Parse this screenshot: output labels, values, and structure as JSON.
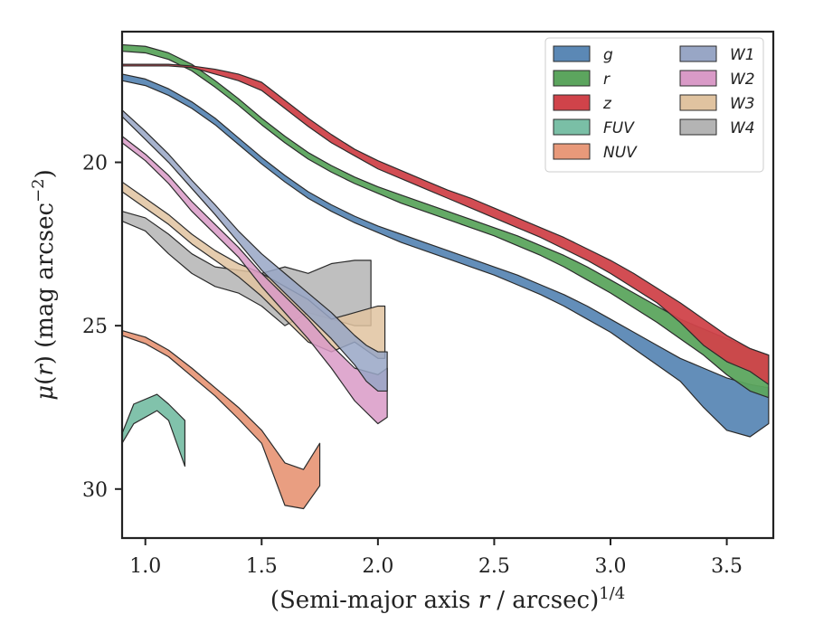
{
  "chart_data": {
    "type": "area",
    "xlabel": "(Semi-major axis r / arcsec)^1/4",
    "ylabel": "μ(r) (mag arcsec^−2)",
    "xlim": [
      0.9,
      3.7
    ],
    "ylim": [
      31.5,
      16.0
    ],
    "y_inverted": true,
    "x_ticks": [
      "1.0",
      "1.5",
      "2.0",
      "2.5",
      "3.0",
      "3.5"
    ],
    "y_ticks": [
      "20",
      "25",
      "30"
    ],
    "grid": false,
    "legend_position": "top-right",
    "legend_columns": 2,
    "series": [
      {
        "name": "g",
        "color": "#5b88b5",
        "points": [
          [
            0.9,
            17.3,
            17.5
          ],
          [
            1.0,
            17.45,
            17.65
          ],
          [
            1.1,
            17.75,
            17.95
          ],
          [
            1.2,
            18.15,
            18.35
          ],
          [
            1.3,
            18.65,
            18.85
          ],
          [
            1.4,
            19.25,
            19.45
          ],
          [
            1.5,
            19.85,
            20.05
          ],
          [
            1.6,
            20.4,
            20.6
          ],
          [
            1.7,
            20.9,
            21.1
          ],
          [
            1.8,
            21.3,
            21.5
          ],
          [
            1.9,
            21.65,
            21.85
          ],
          [
            2.0,
            21.95,
            22.15
          ],
          [
            2.1,
            22.2,
            22.45
          ],
          [
            2.2,
            22.45,
            22.7
          ],
          [
            2.3,
            22.7,
            22.95
          ],
          [
            2.4,
            22.95,
            23.2
          ],
          [
            2.5,
            23.2,
            23.45
          ],
          [
            2.6,
            23.45,
            23.75
          ],
          [
            2.7,
            23.75,
            24.05
          ],
          [
            2.8,
            24.05,
            24.4
          ],
          [
            2.9,
            24.4,
            24.8
          ],
          [
            3.0,
            24.8,
            25.2
          ],
          [
            3.1,
            25.2,
            25.7
          ],
          [
            3.2,
            25.6,
            26.2
          ],
          [
            3.3,
            26.0,
            26.7
          ],
          [
            3.4,
            26.3,
            27.5
          ],
          [
            3.5,
            26.6,
            28.2
          ],
          [
            3.6,
            26.8,
            28.4
          ],
          [
            3.68,
            26.9,
            28.0
          ]
        ]
      },
      {
        "name": "r",
        "color": "#5ca55e",
        "points": [
          [
            0.9,
            16.4,
            16.6
          ],
          [
            1.0,
            16.45,
            16.65
          ],
          [
            1.1,
            16.65,
            16.85
          ],
          [
            1.2,
            17.0,
            17.2
          ],
          [
            1.3,
            17.5,
            17.7
          ],
          [
            1.4,
            18.05,
            18.25
          ],
          [
            1.5,
            18.65,
            18.85
          ],
          [
            1.6,
            19.2,
            19.4
          ],
          [
            1.7,
            19.7,
            19.9
          ],
          [
            1.8,
            20.1,
            20.3
          ],
          [
            1.9,
            20.45,
            20.65
          ],
          [
            2.0,
            20.75,
            20.95
          ],
          [
            2.1,
            21.0,
            21.25
          ],
          [
            2.2,
            21.25,
            21.5
          ],
          [
            2.3,
            21.5,
            21.75
          ],
          [
            2.4,
            21.75,
            22.0
          ],
          [
            2.5,
            22.0,
            22.25
          ],
          [
            2.6,
            22.25,
            22.55
          ],
          [
            2.7,
            22.55,
            22.85
          ],
          [
            2.8,
            22.85,
            23.2
          ],
          [
            2.9,
            23.2,
            23.6
          ],
          [
            3.0,
            23.6,
            24.0
          ],
          [
            3.1,
            24.0,
            24.45
          ],
          [
            3.2,
            24.4,
            24.9
          ],
          [
            3.3,
            24.8,
            25.4
          ],
          [
            3.4,
            25.1,
            25.9
          ],
          [
            3.5,
            25.4,
            26.5
          ],
          [
            3.6,
            25.7,
            27.0
          ],
          [
            3.68,
            25.9,
            27.2
          ]
        ]
      },
      {
        "name": "z",
        "color": "#d0434a",
        "points": [
          [
            0.9,
            17.0,
            17.05
          ],
          [
            1.0,
            17.0,
            17.05
          ],
          [
            1.1,
            17.0,
            17.05
          ],
          [
            1.2,
            17.05,
            17.1
          ],
          [
            1.3,
            17.15,
            17.3
          ],
          [
            1.4,
            17.3,
            17.5
          ],
          [
            1.5,
            17.55,
            17.8
          ],
          [
            1.6,
            18.1,
            18.35
          ],
          [
            1.7,
            18.65,
            18.9
          ],
          [
            1.8,
            19.15,
            19.4
          ],
          [
            1.9,
            19.6,
            19.8
          ],
          [
            2.0,
            19.95,
            20.2
          ],
          [
            2.1,
            20.25,
            20.5
          ],
          [
            2.2,
            20.55,
            20.8
          ],
          [
            2.3,
            20.85,
            21.1
          ],
          [
            2.4,
            21.1,
            21.4
          ],
          [
            2.5,
            21.4,
            21.7
          ],
          [
            2.6,
            21.7,
            22.0
          ],
          [
            2.7,
            22.0,
            22.3
          ],
          [
            2.8,
            22.3,
            22.65
          ],
          [
            2.9,
            22.65,
            23.0
          ],
          [
            3.0,
            23.0,
            23.4
          ],
          [
            3.1,
            23.4,
            23.85
          ],
          [
            3.2,
            23.85,
            24.3
          ],
          [
            3.3,
            24.3,
            24.9
          ],
          [
            3.4,
            24.8,
            25.6
          ],
          [
            3.5,
            25.3,
            26.1
          ],
          [
            3.6,
            25.7,
            26.4
          ],
          [
            3.68,
            25.9,
            26.8
          ]
        ]
      },
      {
        "name": "FUV",
        "color": "#7abfa6",
        "points": [
          [
            0.9,
            28.3,
            28.6
          ],
          [
            0.95,
            27.4,
            28.0
          ],
          [
            1.05,
            27.1,
            27.6
          ],
          [
            1.1,
            27.4,
            27.9
          ],
          [
            1.17,
            27.9,
            29.3
          ]
        ]
      },
      {
        "name": "NUV",
        "color": "#e8997a",
        "points": [
          [
            0.9,
            25.15,
            25.3
          ],
          [
            1.0,
            25.35,
            25.55
          ],
          [
            1.1,
            25.75,
            25.95
          ],
          [
            1.2,
            26.3,
            26.55
          ],
          [
            1.3,
            26.9,
            27.15
          ],
          [
            1.4,
            27.5,
            27.85
          ],
          [
            1.5,
            28.2,
            28.6
          ],
          [
            1.6,
            29.2,
            30.5
          ],
          [
            1.68,
            29.4,
            30.6
          ],
          [
            1.75,
            28.6,
            29.9
          ]
        ]
      },
      {
        "name": "W1",
        "color": "#98a6c5",
        "points": [
          [
            0.9,
            18.4,
            18.6
          ],
          [
            1.0,
            19.05,
            19.3
          ],
          [
            1.1,
            19.75,
            20.0
          ],
          [
            1.2,
            20.55,
            20.8
          ],
          [
            1.3,
            21.3,
            21.6
          ],
          [
            1.4,
            22.1,
            22.45
          ],
          [
            1.5,
            22.8,
            23.3
          ],
          [
            1.6,
            23.4,
            24.0
          ],
          [
            1.7,
            24.0,
            24.7
          ],
          [
            1.8,
            24.6,
            25.4
          ],
          [
            1.9,
            25.3,
            26.2
          ],
          [
            1.95,
            25.6,
            26.7
          ],
          [
            2.0,
            25.8,
            27.0
          ],
          [
            2.04,
            25.8,
            27.0
          ]
        ]
      },
      {
        "name": "W2",
        "color": "#d99ac7",
        "points": [
          [
            0.9,
            19.2,
            19.4
          ],
          [
            1.0,
            19.75,
            19.95
          ],
          [
            1.1,
            20.4,
            20.65
          ],
          [
            1.2,
            21.2,
            21.5
          ],
          [
            1.3,
            21.9,
            22.2
          ],
          [
            1.4,
            22.6,
            22.9
          ],
          [
            1.5,
            23.4,
            23.8
          ],
          [
            1.6,
            24.1,
            24.6
          ],
          [
            1.7,
            24.8,
            25.4
          ],
          [
            1.8,
            25.6,
            26.3
          ],
          [
            1.9,
            26.3,
            27.3
          ],
          [
            2.0,
            26.5,
            28.0
          ],
          [
            2.04,
            26.3,
            27.8
          ]
        ]
      },
      {
        "name": "W3",
        "color": "#e0c3a0",
        "points": [
          [
            0.9,
            20.6,
            20.9
          ],
          [
            1.0,
            21.1,
            21.4
          ],
          [
            1.1,
            21.6,
            21.9
          ],
          [
            1.2,
            22.2,
            22.5
          ],
          [
            1.3,
            22.7,
            23.0
          ],
          [
            1.4,
            23.1,
            23.5
          ],
          [
            1.5,
            23.4,
            24.1
          ],
          [
            1.6,
            23.8,
            24.8
          ],
          [
            1.7,
            24.2,
            25.5
          ],
          [
            1.8,
            24.8,
            25.8
          ],
          [
            1.9,
            24.6,
            25.5
          ],
          [
            2.0,
            24.4,
            26.0
          ],
          [
            2.03,
            24.4,
            26.0
          ]
        ]
      },
      {
        "name": "W4",
        "color": "#b4b4b4",
        "points": [
          [
            0.9,
            21.5,
            21.8
          ],
          [
            1.0,
            21.7,
            22.1
          ],
          [
            1.1,
            22.2,
            22.8
          ],
          [
            1.2,
            22.8,
            23.4
          ],
          [
            1.3,
            23.2,
            23.8
          ],
          [
            1.4,
            23.3,
            24.0
          ],
          [
            1.5,
            23.4,
            24.4
          ],
          [
            1.6,
            23.2,
            25.0
          ],
          [
            1.7,
            23.4,
            24.6
          ],
          [
            1.8,
            23.1,
            24.8
          ],
          [
            1.9,
            23.0,
            25.0
          ],
          [
            1.97,
            23.0,
            25.0
          ]
        ]
      }
    ]
  }
}
